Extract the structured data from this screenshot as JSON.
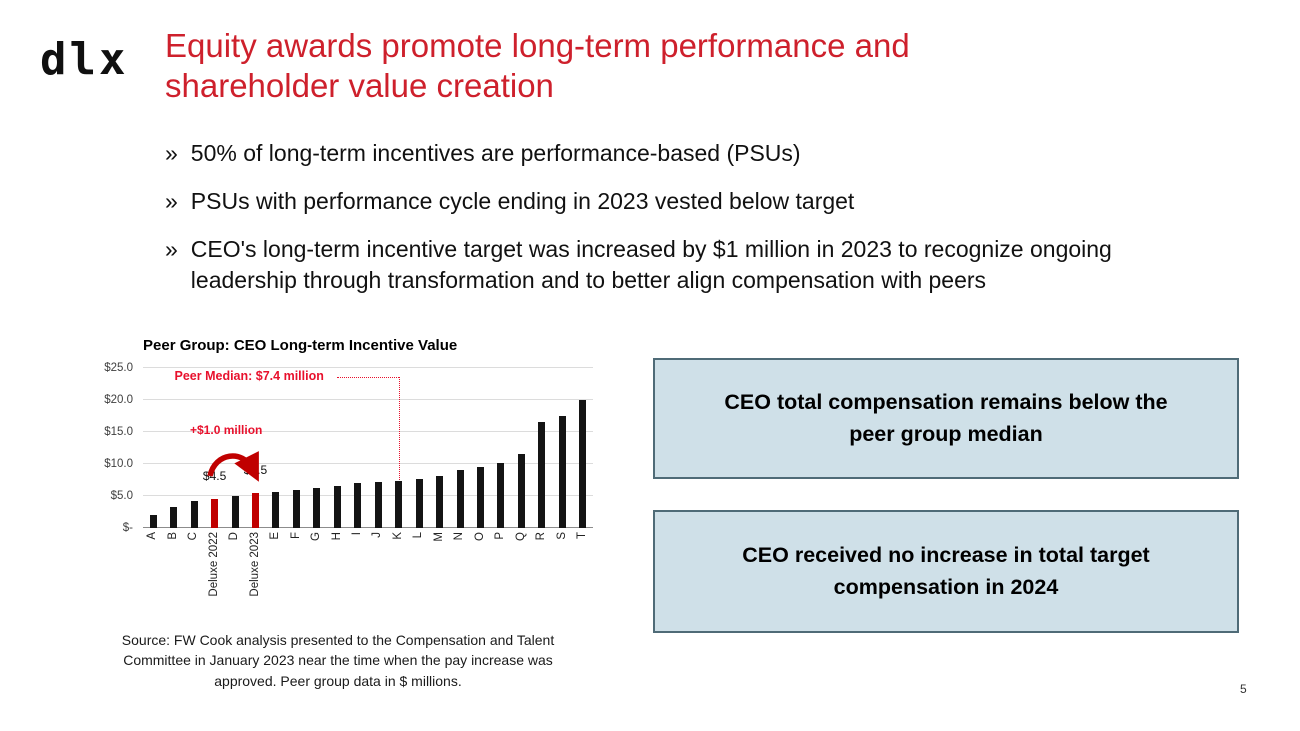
{
  "colors": {
    "title_red": "#CE202C",
    "annotation_red": "#E8112D",
    "bar_dark": "#141414",
    "bar_red": "#C00000",
    "callout_bg": "#CFE0E8",
    "callout_border": "#4F6B77"
  },
  "slide": {
    "logo": "dlx",
    "title": "Equity awards promote long-term performance and shareholder value creation",
    "bullet_marker": "»",
    "bullets": [
      "50% of long-term incentives are performance-based (PSUs)",
      "PSUs with performance cycle ending in 2023 vested below target",
      "CEO's long-term incentive target was increased by $1 million in 2023 to recognize ongoing leadership through transformation and to better align compensation with peers"
    ],
    "page_number": "5"
  },
  "chart_data": {
    "type": "bar",
    "title": "Peer Group: CEO Long-term Incentive Value",
    "categories": [
      "A",
      "B",
      "C",
      "Deluxe 2022",
      "D",
      "Deluxe 2023",
      "E",
      "F",
      "G",
      "H",
      "I",
      "J",
      "K",
      "L",
      "M",
      "N",
      "O",
      "P",
      "Q",
      "R",
      "S",
      "T"
    ],
    "values": [
      2.0,
      3.3,
      4.2,
      4.5,
      5.0,
      5.5,
      5.6,
      5.9,
      6.2,
      6.5,
      7.0,
      7.2,
      7.4,
      7.7,
      8.2,
      9.0,
      9.6,
      10.2,
      11.5,
      16.5,
      17.5,
      20.0
    ],
    "highlight_indices": [
      3,
      5
    ],
    "bar_labels": {
      "3": "$4.5",
      "5": "$5.5"
    },
    "yticks": [
      "$25.0",
      "$20.0",
      "$15.0",
      "$10.0",
      "$5.0",
      "$-"
    ],
    "ytick_values": [
      25,
      20,
      15,
      10,
      5,
      0
    ],
    "ylim": [
      0,
      25
    ],
    "xlabel": "",
    "ylabel": "",
    "grid": true,
    "annotations": {
      "peer_median": "Peer Median: $7.4 million",
      "increase": "+$1.0 million"
    },
    "source": "Source: FW Cook analysis presented to the Compensation and Talent Committee in January 2023 near the time when the pay increase was approved. Peer group data in $ millions."
  },
  "callouts": [
    "CEO total compensation remains below the peer group median",
    "CEO received no increase in total target compensation in 2024"
  ]
}
